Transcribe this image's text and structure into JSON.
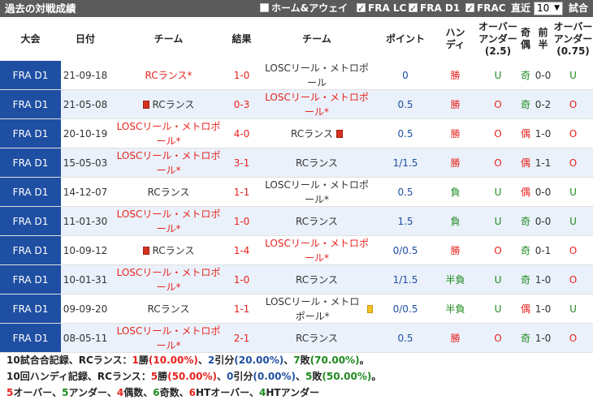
{
  "title": "過去の対戦成績",
  "filters": [
    {
      "label": "ホーム&アウェイ",
      "checked": false
    },
    {
      "label": "FRA LC",
      "checked": true
    },
    {
      "label": "FRA D1",
      "checked": true
    },
    {
      "label": "FRAC",
      "checked": true
    }
  ],
  "recent_label": "直近",
  "recent_value": "10",
  "matches_suffix": "試合",
  "headers": {
    "league": "大会",
    "date": "日付",
    "team": "チーム",
    "score": "結果",
    "team2": "チーム",
    "point": "ポイント",
    "handi": "ハン\nディ",
    "over1": "オーバー\nアンダー\n(2.5)",
    "oddeven": "奇\n偶",
    "half": "前\n半",
    "over2": "オーバー\nアンダー\n(0.75)"
  },
  "rows": [
    {
      "league": "FRA D1",
      "date": "21-09-18",
      "home": "RCランス*",
      "home_red": true,
      "home_card": "",
      "score": "1-0",
      "away": "LOSCリール・メトロポール",
      "away_red": false,
      "away_card": "",
      "point": "0",
      "handi": "勝",
      "ou": "U",
      "oe": "奇",
      "half": "0-0",
      "ou2": "U"
    },
    {
      "league": "FRA D1",
      "date": "21-05-08",
      "home": "RCランス",
      "home_red": false,
      "home_card": "r",
      "score": "0-3",
      "away": "LOSCリール・メトロポール*",
      "away_red": true,
      "away_card": "",
      "point": "0.5",
      "handi": "勝",
      "ou": "O",
      "oe": "奇",
      "half": "0-2",
      "ou2": "O"
    },
    {
      "league": "FRA D1",
      "date": "20-10-19",
      "home": "LOSCリール・メトロポール*",
      "home_red": true,
      "home_card": "",
      "score": "4-0",
      "away": "RCランス",
      "away_red": false,
      "away_card": "r",
      "point": "0.5",
      "handi": "勝",
      "ou": "O",
      "oe": "偶",
      "half": "1-0",
      "ou2": "O"
    },
    {
      "league": "FRA D1",
      "date": "15-05-03",
      "home": "LOSCリール・メトロポール*",
      "home_red": true,
      "home_card": "",
      "score": "3-1",
      "away": "RCランス",
      "away_red": false,
      "away_card": "",
      "point": "1/1.5",
      "handi": "勝",
      "ou": "O",
      "oe": "偶",
      "half": "1-1",
      "ou2": "O"
    },
    {
      "league": "FRA D1",
      "date": "14-12-07",
      "home": "RCランス",
      "home_red": false,
      "home_card": "",
      "score": "1-1",
      "away": "LOSCリール・メトロポール*",
      "away_red": false,
      "away_card": "",
      "point": "0.5",
      "handi": "負",
      "ou": "U",
      "oe": "偶",
      "half": "0-0",
      "ou2": "U"
    },
    {
      "league": "FRA D1",
      "date": "11-01-30",
      "home": "LOSCリール・メトロポール*",
      "home_red": true,
      "home_card": "",
      "score": "1-0",
      "away": "RCランス",
      "away_red": false,
      "away_card": "",
      "point": "1.5",
      "handi": "負",
      "ou": "U",
      "oe": "奇",
      "half": "0-0",
      "ou2": "U"
    },
    {
      "league": "FRA D1",
      "date": "10-09-12",
      "home": "RCランス",
      "home_red": false,
      "home_card": "r",
      "score": "1-4",
      "away": "LOSCリール・メトロポール*",
      "away_red": true,
      "away_card": "",
      "point": "0/0.5",
      "handi": "勝",
      "ou": "O",
      "oe": "奇",
      "half": "0-1",
      "ou2": "O"
    },
    {
      "league": "FRA D1",
      "date": "10-01-31",
      "home": "LOSCリール・メトロポール*",
      "home_red": true,
      "home_card": "",
      "score": "1-0",
      "away": "RCランス",
      "away_red": false,
      "away_card": "",
      "point": "1/1.5",
      "handi": "半負",
      "ou": "U",
      "oe": "奇",
      "half": "1-0",
      "ou2": "O"
    },
    {
      "league": "FRA D1",
      "date": "09-09-20",
      "home": "RCランス",
      "home_red": false,
      "home_card": "",
      "score": "1-1",
      "away": "LOSCリール・メトロポール*",
      "away_red": false,
      "away_card": "y",
      "point": "0/0.5",
      "handi": "半負",
      "ou": "U",
      "oe": "偶",
      "half": "1-0",
      "ou2": "U"
    },
    {
      "league": "FRA D1",
      "date": "08-05-11",
      "home": "LOSCリール・メトロポール*",
      "home_red": true,
      "home_card": "",
      "score": "2-1",
      "away": "RCランス",
      "away_red": false,
      "away_card": "",
      "point": "0.5",
      "handi": "勝",
      "ou": "O",
      "oe": "奇",
      "half": "1-0",
      "ou2": "O"
    }
  ],
  "summary": {
    "line1": {
      "count": "10",
      "text_a": "試合合記録、",
      "team": "RCランス",
      "colon": "：",
      "wins": "1",
      "wins_label": "勝",
      "wins_pct": "(10.00%)",
      "sep1": "、",
      "draws": "2",
      "draws_label": "引分",
      "draws_pct": "(20.00%)",
      "sep2": "、",
      "losses": "7",
      "losses_label": "敗",
      "losses_pct": "(70.00%)",
      "end": "。"
    },
    "line2": {
      "count": "10",
      "text_a": "回ハンディ記録、",
      "team": "RCランス",
      "colon": "：",
      "wins": "5",
      "wins_label": "勝",
      "wins_pct": "(50.00%)",
      "sep1": "、",
      "draws": "0",
      "draws_label": "引分",
      "draws_pct": "(0.00%)",
      "sep2": "、",
      "losses": "5",
      "losses_label": "敗",
      "losses_pct": "(50.00%)",
      "end": "。"
    },
    "line3": [
      {
        "n": "5",
        "label": "オーバー、"
      },
      {
        "n": "5",
        "label": "アンダー、"
      },
      {
        "n": "4",
        "label": "偶数、"
      },
      {
        "n": "6",
        "label": "奇数、"
      },
      {
        "n": "6",
        "label": "HTオーバー、"
      },
      {
        "n": "4",
        "label": "HTアンダー"
      }
    ]
  },
  "colors": {
    "league_bg": "#1f4fa3",
    "row_alt": "#eaf1fa",
    "red": "#e8231f",
    "green": "#1e8a1e",
    "blue": "#1f4fa3",
    "title_bg": "#5b5b5b"
  }
}
